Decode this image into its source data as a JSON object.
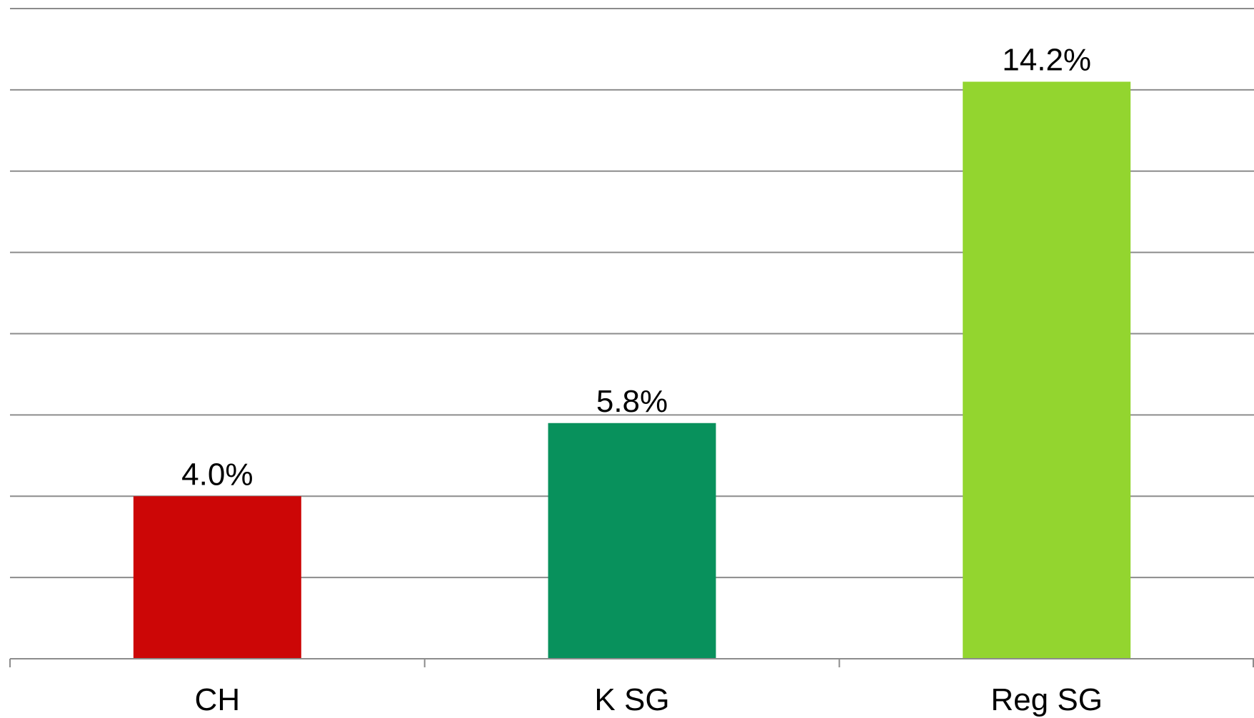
{
  "chart_data": {
    "type": "bar",
    "categories": [
      "CH",
      "K SG",
      "Reg SG"
    ],
    "values": [
      4.0,
      5.8,
      14.2
    ],
    "data_labels": [
      "4.0%",
      "5.8%",
      "14.2%"
    ],
    "colors": [
      "#cc0606",
      "#08915c",
      "#93d52f"
    ],
    "ylim": [
      0,
      16
    ],
    "y_gridline_step": 2,
    "grid": true,
    "legend": "none",
    "title": "",
    "xlabel": "",
    "ylabel": ""
  }
}
